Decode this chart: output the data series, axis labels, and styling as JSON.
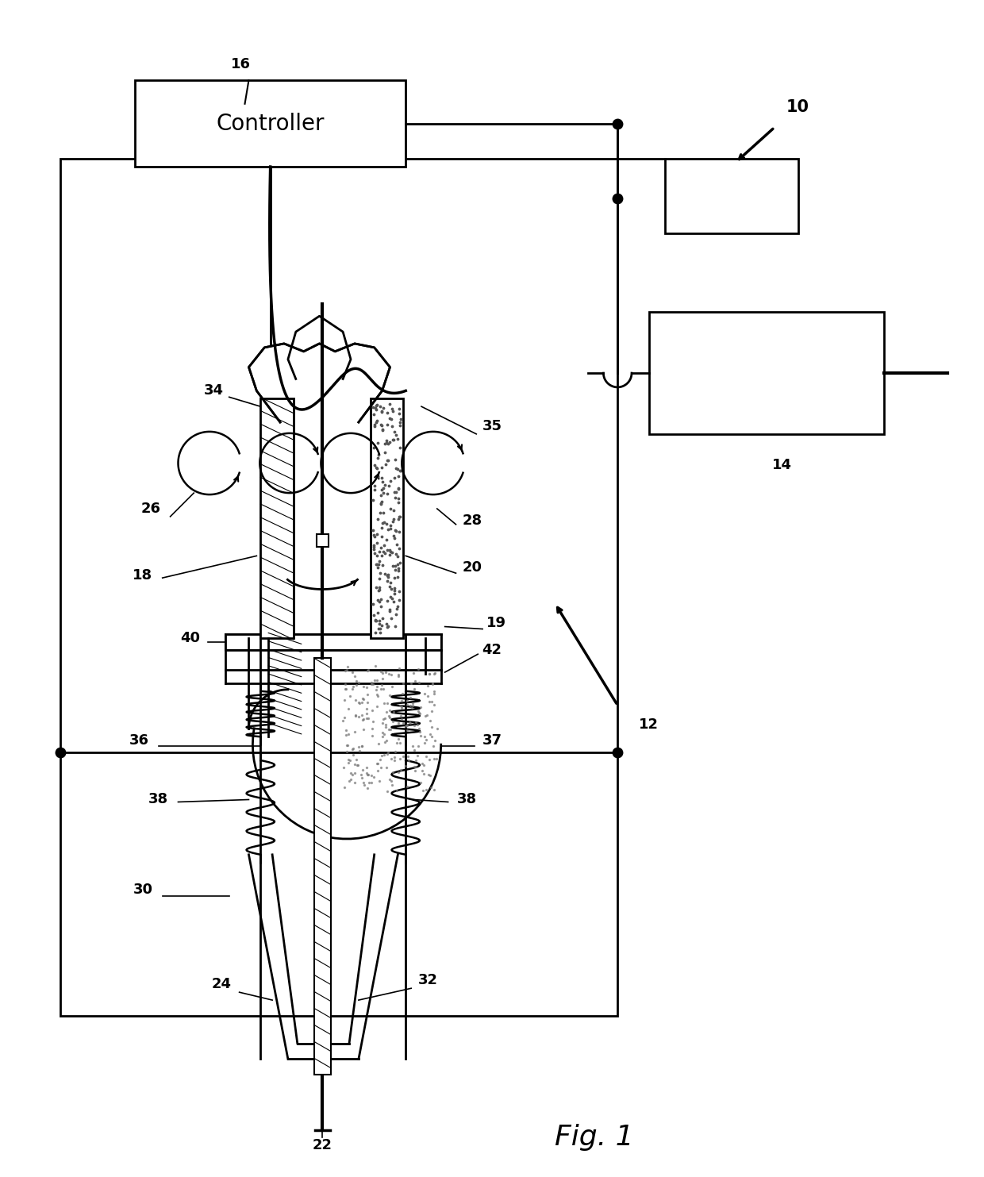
{
  "bg_color": "#ffffff",
  "line_color": "#000000",
  "fig_caption": "Fig. 1",
  "controller_text": "Controller",
  "label_fontsize": 13,
  "caption_fontsize": 26,
  "controller_fontsize": 20
}
